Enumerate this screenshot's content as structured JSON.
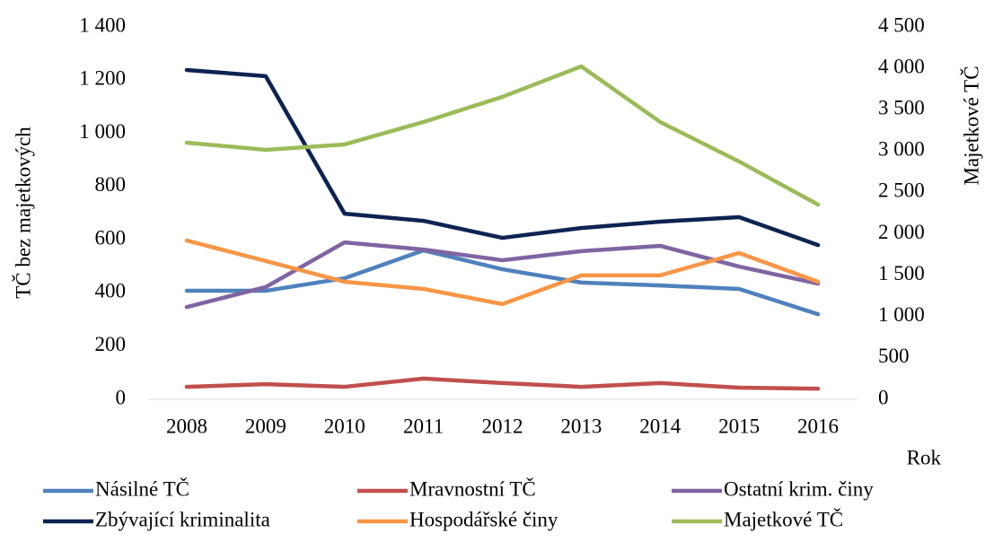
{
  "chart_data": {
    "type": "line",
    "categories": [
      "2008",
      "2009",
      "2010",
      "2011",
      "2012",
      "2013",
      "2014",
      "2015",
      "2016"
    ],
    "xlabel": "Rok",
    "ylabel": "TČ bez majetkových",
    "y2label": "Majetkové TČ",
    "ylim": [
      0,
      1400
    ],
    "yticks": [
      0,
      200,
      400,
      600,
      800,
      {
        "value": 1000,
        "label": "1 000"
      },
      {
        "value": 1200,
        "label": "1 200"
      },
      {
        "value": 1400,
        "label": "1 400"
      }
    ],
    "y2lim": [
      0,
      4500
    ],
    "y2ticks": [
      0,
      500,
      {
        "value": 1000,
        "label": "1 000"
      },
      {
        "value": 1500,
        "label": "1 500"
      },
      {
        "value": 2000,
        "label": "2 000"
      },
      {
        "value": 2500,
        "label": "2 500"
      },
      {
        "value": 3000,
        "label": "3 000"
      },
      {
        "value": 3500,
        "label": "3 500"
      },
      {
        "value": 4000,
        "label": "4 000"
      },
      {
        "value": 4500,
        "label": "4 500"
      }
    ],
    "grid": false,
    "legend": "bottom",
    "series": [
      {
        "name": "Násilné TČ",
        "color": "#4f81bd",
        "values": [
          408,
          408,
          455,
          560,
          489,
          439,
          428,
          415,
          320
        ]
      },
      {
        "name": "Mravnostní TČ",
        "color": "#c0504d",
        "values": [
          47,
          57,
          47,
          78,
          61,
          47,
          61,
          44,
          40
        ]
      },
      {
        "name": "Ostatní krim. činy",
        "color": "#8064a2",
        "values": [
          347,
          422,
          590,
          563,
          523,
          557,
          577,
          499,
          435
        ]
      },
      {
        "name": "Zbývající kriminalita",
        "color": "#0d2352",
        "values": [
          1238,
          1215,
          698,
          671,
          607,
          644,
          668,
          685,
          580
        ]
      },
      {
        "name": "Hospodářské činy",
        "color": "#f79646",
        "values": [
          597,
          520,
          442,
          415,
          358,
          466,
          466,
          550,
          442
        ]
      },
      {
        "name": "Majetkové TČ",
        "color": "#9bbb59",
        "axis": "y2",
        "values": [
          3101,
          3015,
          3080,
          3351,
          3655,
          4023,
          3351,
          2874,
          2353
        ]
      }
    ]
  }
}
